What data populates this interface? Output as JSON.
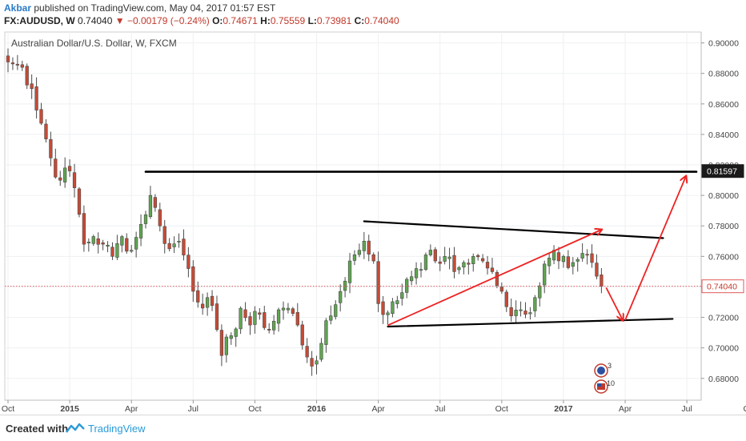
{
  "header": {
    "author": "Akbar",
    "published_text": "published on TradingView.com, May 04, 2017 01:57 EST",
    "symbol": "FX:AUDUSD, W",
    "last": "0.74040",
    "change_arrow": "▼",
    "change": "−0.00179 (−0.24%)",
    "open_label": "O:",
    "open": "0.74671",
    "high_label": "H:",
    "high": "0.75559",
    "low_label": "L:",
    "low": "0.73981",
    "close_label": "C:",
    "close": "0.74040"
  },
  "chart_data": {
    "type": "candlestick",
    "title": "Australian Dollar/U.S. Dollar, W, FXCM",
    "ylim": [
      0.672,
      0.904
    ],
    "y_ticks": [
      "0.90000",
      "0.88000",
      "0.86000",
      "0.84000",
      "0.82000",
      "0.80000",
      "0.78000",
      "0.76000",
      "0.74000",
      "0.72000",
      "0.70000",
      "0.68000"
    ],
    "y_tick_values": [
      0.9,
      0.88,
      0.86,
      0.84,
      0.82,
      0.8,
      0.78,
      0.76,
      0.74,
      0.72,
      0.7,
      0.68
    ],
    "x_range": [
      0,
      145
    ],
    "x_ticks": [
      {
        "label": "Oct",
        "x": 0,
        "bold": false
      },
      {
        "label": "2015",
        "x": 13,
        "bold": true
      },
      {
        "label": "Apr",
        "x": 26,
        "bold": false
      },
      {
        "label": "Jul",
        "x": 39,
        "bold": false
      },
      {
        "label": "Oct",
        "x": 52,
        "bold": false
      },
      {
        "label": "2016",
        "x": 65,
        "bold": true
      },
      {
        "label": "Apr",
        "x": 78,
        "bold": false
      },
      {
        "label": "Jul",
        "x": 91,
        "bold": false
      },
      {
        "label": "Oct",
        "x": 104,
        "bold": false
      },
      {
        "label": "2017",
        "x": 117,
        "bold": true
      },
      {
        "label": "Apr",
        "x": 130,
        "bold": false
      },
      {
        "label": "Jul",
        "x": 143,
        "bold": false
      },
      {
        "label": "Oc",
        "x": 156,
        "bold": false
      }
    ],
    "price_labels": [
      {
        "text": "0.81597",
        "value": 0.81597,
        "style": "dark"
      },
      {
        "text": "0.74040",
        "value": 0.7404,
        "style": "red"
      }
    ],
    "current_price_line": 0.7404,
    "colors": {
      "up": "#5fa550",
      "down": "#c84a35",
      "trendline": "#000000",
      "arrow": "#ee2222",
      "price_line": "#e05a5a"
    },
    "anchors": [
      {
        "x": 0,
        "y": 0.8875
      },
      {
        "x": 3,
        "y": 0.884
      },
      {
        "x": 5,
        "y": 0.87
      },
      {
        "x": 8,
        "y": 0.837
      },
      {
        "x": 10,
        "y": 0.812
      },
      {
        "x": 12,
        "y": 0.818
      },
      {
        "x": 14,
        "y": 0.805
      },
      {
        "x": 16,
        "y": 0.768
      },
      {
        "x": 18,
        "y": 0.773
      },
      {
        "x": 20,
        "y": 0.768
      },
      {
        "x": 22,
        "y": 0.76
      },
      {
        "x": 24,
        "y": 0.773
      },
      {
        "x": 26,
        "y": 0.764
      },
      {
        "x": 28,
        "y": 0.781
      },
      {
        "x": 30,
        "y": 0.8
      },
      {
        "x": 32,
        "y": 0.78
      },
      {
        "x": 34,
        "y": 0.765
      },
      {
        "x": 36,
        "y": 0.77
      },
      {
        "x": 38,
        "y": 0.752
      },
      {
        "x": 40,
        "y": 0.73
      },
      {
        "x": 42,
        "y": 0.733
      },
      {
        "x": 44,
        "y": 0.712
      },
      {
        "x": 45,
        "y": 0.695
      },
      {
        "x": 47,
        "y": 0.708
      },
      {
        "x": 49,
        "y": 0.726
      },
      {
        "x": 51,
        "y": 0.715
      },
      {
        "x": 53,
        "y": 0.722
      },
      {
        "x": 55,
        "y": 0.712
      },
      {
        "x": 57,
        "y": 0.725
      },
      {
        "x": 59,
        "y": 0.726
      },
      {
        "x": 61,
        "y": 0.715
      },
      {
        "x": 63,
        "y": 0.694
      },
      {
        "x": 64,
        "y": 0.688
      },
      {
        "x": 66,
        "y": 0.703
      },
      {
        "x": 68,
        "y": 0.721
      },
      {
        "x": 70,
        "y": 0.737
      },
      {
        "x": 72,
        "y": 0.757
      },
      {
        "x": 74,
        "y": 0.764
      },
      {
        "x": 75,
        "y": 0.77
      },
      {
        "x": 77,
        "y": 0.757
      },
      {
        "x": 78,
        "y": 0.729
      },
      {
        "x": 80,
        "y": 0.723
      },
      {
        "x": 82,
        "y": 0.731
      },
      {
        "x": 84,
        "y": 0.745
      },
      {
        "x": 86,
        "y": 0.752
      },
      {
        "x": 88,
        "y": 0.761
      },
      {
        "x": 90,
        "y": 0.757
      },
      {
        "x": 92,
        "y": 0.76
      },
      {
        "x": 94,
        "y": 0.75
      },
      {
        "x": 96,
        "y": 0.756
      },
      {
        "x": 98,
        "y": 0.76
      },
      {
        "x": 100,
        "y": 0.757
      },
      {
        "x": 102,
        "y": 0.75
      },
      {
        "x": 103,
        "y": 0.741
      },
      {
        "x": 105,
        "y": 0.727
      },
      {
        "x": 106,
        "y": 0.721
      },
      {
        "x": 108,
        "y": 0.725
      },
      {
        "x": 109,
        "y": 0.722
      },
      {
        "x": 111,
        "y": 0.733
      },
      {
        "x": 113,
        "y": 0.755
      },
      {
        "x": 115,
        "y": 0.764
      },
      {
        "x": 117,
        "y": 0.76
      },
      {
        "x": 119,
        "y": 0.756
      },
      {
        "x": 121,
        "y": 0.762
      },
      {
        "x": 123,
        "y": 0.756
      },
      {
        "x": 124,
        "y": 0.747
      },
      {
        "x": 125,
        "y": 0.7404
      }
    ],
    "trendlines": [
      {
        "from": [
          29,
          0.8155
        ],
        "to": [
          145,
          0.8155
        ],
        "width": 2.6
      },
      {
        "from": [
          75,
          0.783
        ],
        "to": [
          138,
          0.772
        ],
        "width": 2.2
      },
      {
        "from": [
          80,
          0.714
        ],
        "to": [
          140,
          0.719
        ],
        "width": 2.2
      }
    ],
    "arrows": [
      {
        "from": [
          80,
          0.7148
        ],
        "to": [
          125,
          0.7775
        ]
      },
      {
        "from": [
          126,
          0.7395
        ],
        "to": [
          129.5,
          0.7182
        ]
      },
      {
        "from": [
          130,
          0.7182
        ],
        "to": [
          142.8,
          0.8125
        ]
      }
    ]
  }
}
